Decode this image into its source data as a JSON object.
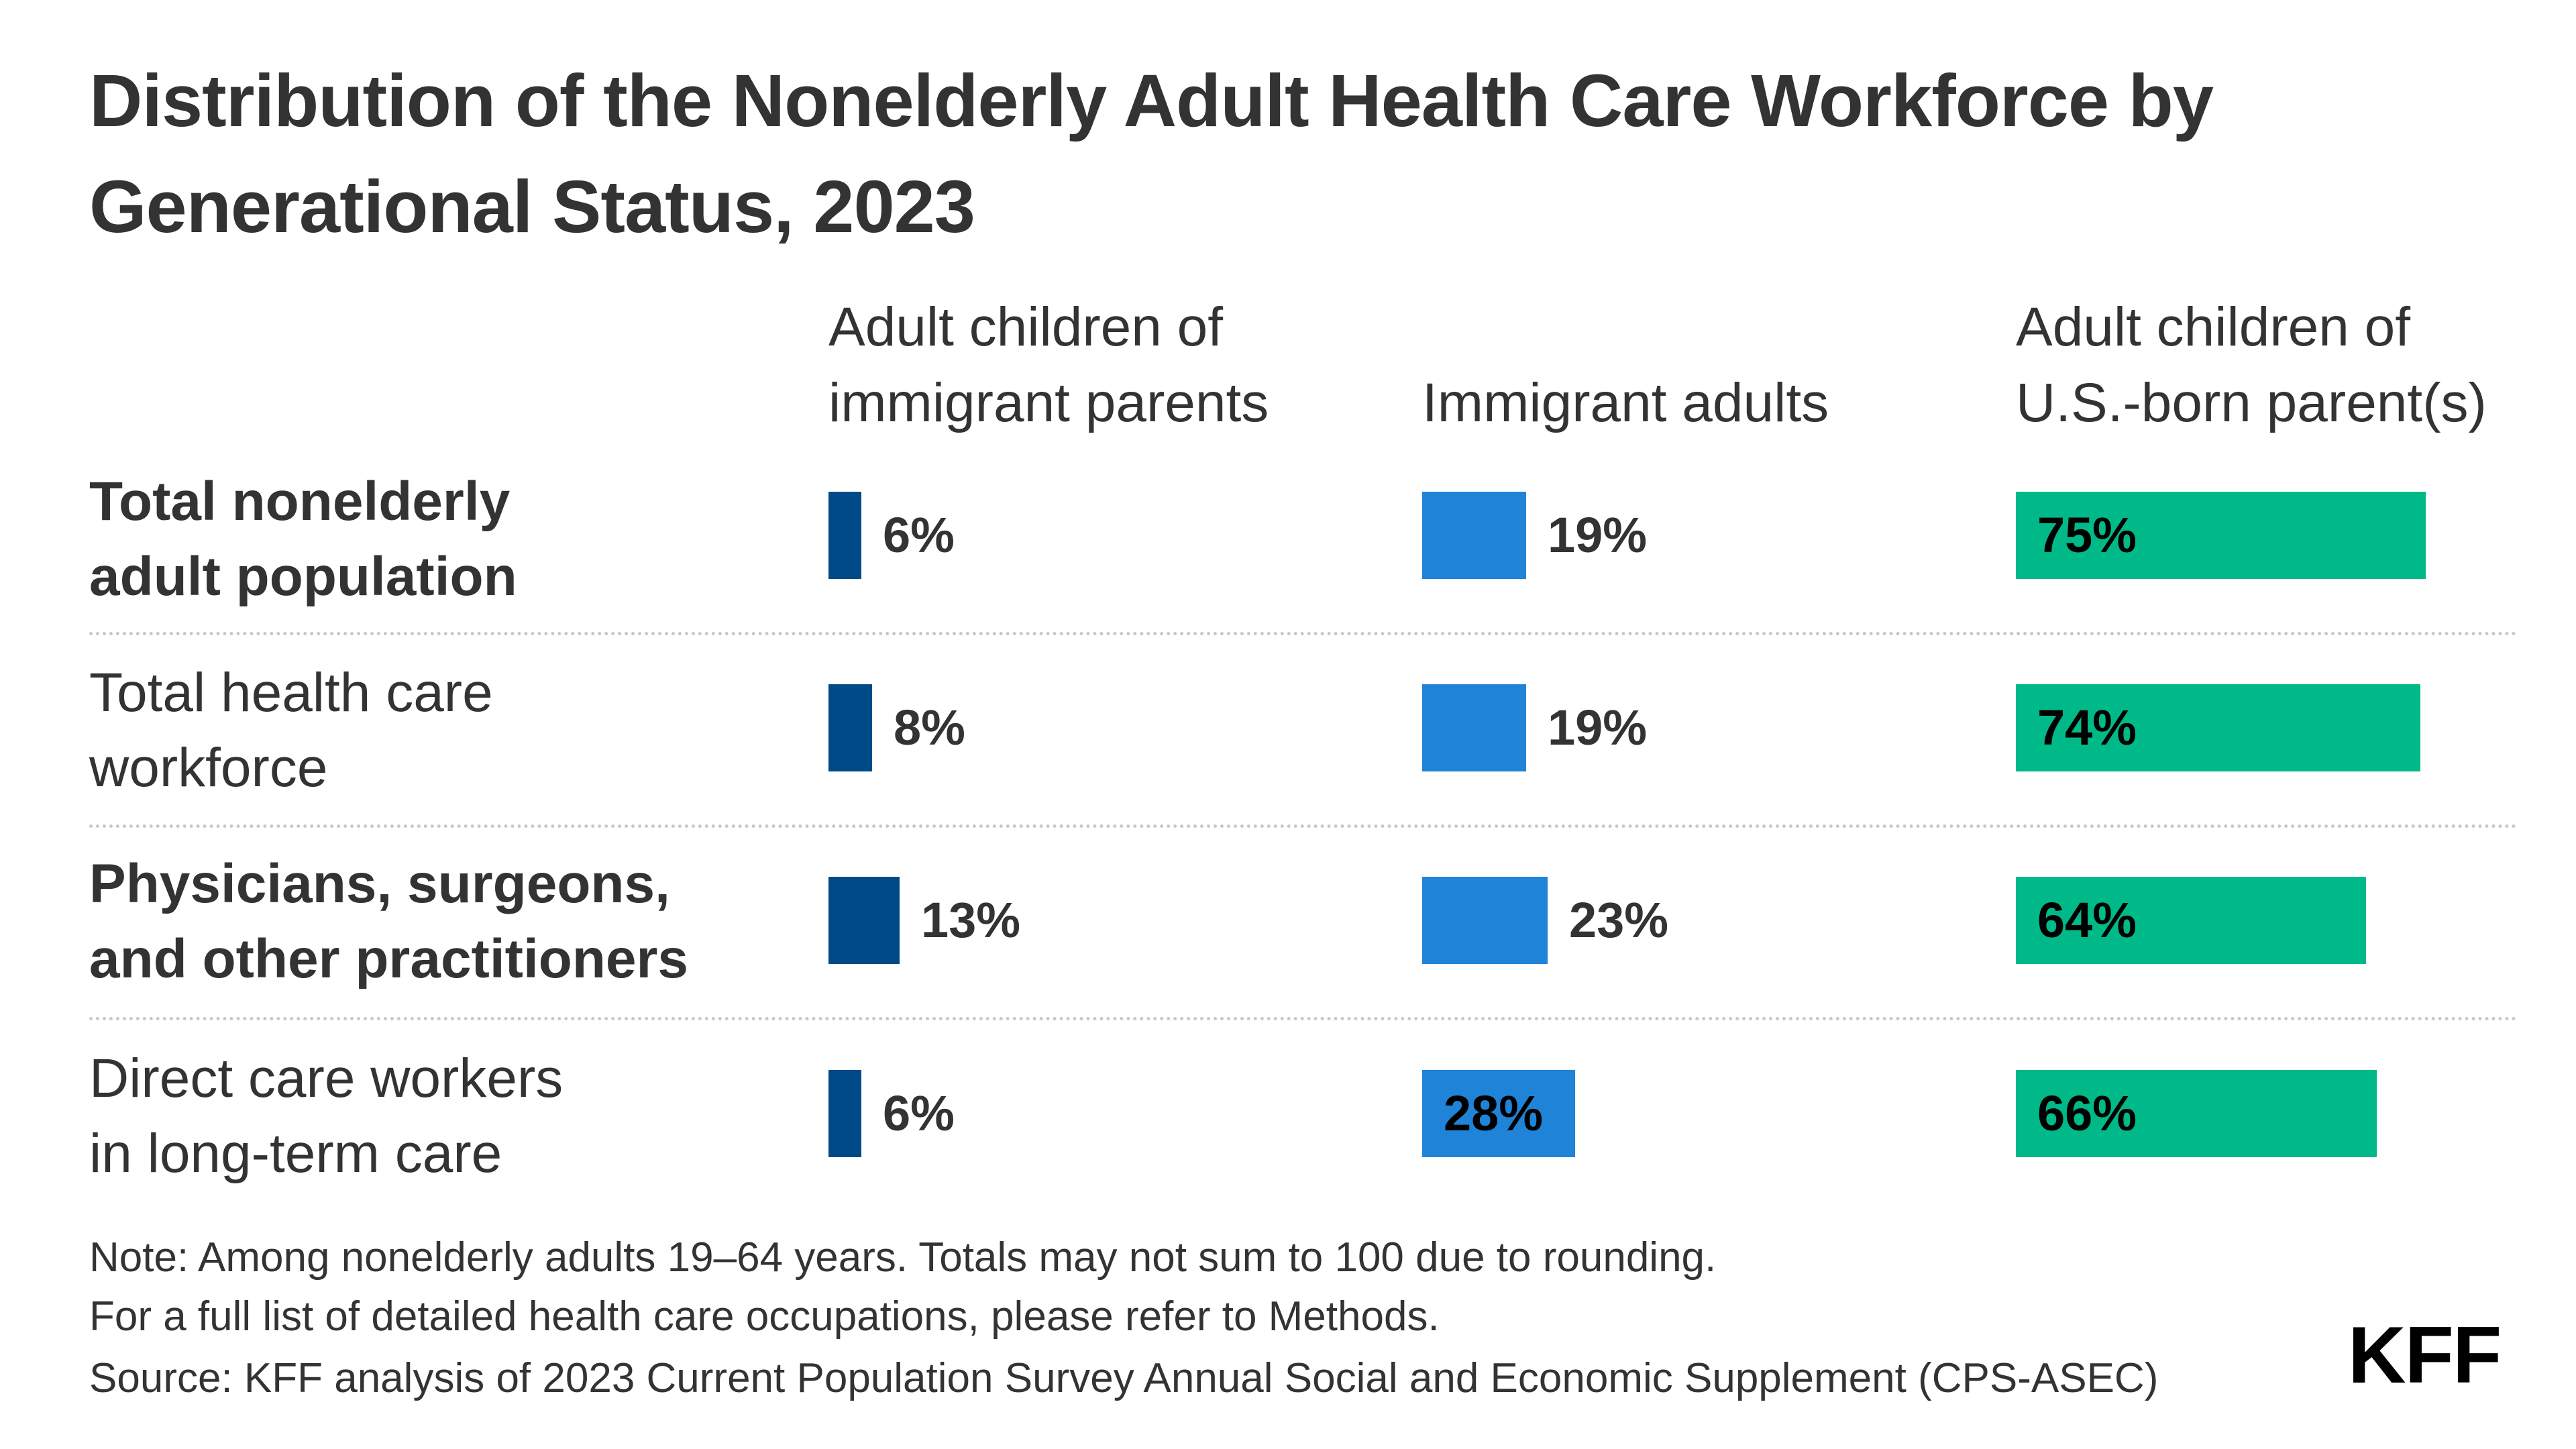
{
  "title": "Distribution of the Nonelderly Adult Health Care Workforce by Generational Status, 2023",
  "colors": {
    "immigrant_parents": "#004b87",
    "immigrant_adults": "#1f83d7",
    "us_born_parents": "#00b988",
    "text": "#333333",
    "divider": "#c8c8c8"
  },
  "chart_data": {
    "type": "bar",
    "orientation": "horizontal",
    "title": "Distribution of the Nonelderly Adult Health Care Workforce by Generational Status, 2023",
    "categories": [
      "Total nonelderly adult population",
      "Total health care workforce",
      "Physicians, surgeons, and other practitioners",
      "Direct care workers in long-term care"
    ],
    "category_lines": [
      [
        "Total nonelderly",
        "adult population"
      ],
      [
        "Total health care",
        "workforce"
      ],
      [
        "Physicians, surgeons,",
        "and other practitioners"
      ],
      [
        "Direct care workers",
        "in long-term care"
      ]
    ],
    "category_bold": [
      true,
      false,
      true,
      false
    ],
    "series": [
      {
        "name": "Adult children of immigrant parents",
        "header_lines": [
          "Adult children of",
          "immigrant parents"
        ],
        "values": [
          6,
          8,
          13,
          6
        ],
        "labels": [
          "6%",
          "8%",
          "13%",
          "6%"
        ]
      },
      {
        "name": "Immigrant adults",
        "header_lines": [
          "",
          "Immigrant adults"
        ],
        "values": [
          19,
          19,
          23,
          28
        ],
        "labels": [
          "19%",
          "19%",
          "23%",
          "28%"
        ]
      },
      {
        "name": "Adult children of U.S.-born parent(s)",
        "header_lines": [
          "Adult children of",
          "U.S.-born parent(s)"
        ],
        "values": [
          75,
          74,
          64,
          66
        ],
        "labels": [
          "75%",
          "74%",
          "64%",
          "66%"
        ]
      }
    ],
    "unit": "%"
  },
  "notes": [
    "Note: Among nonelderly adults 19–64 years. Totals may not sum to 100 due to rounding.",
    "For a full list of detailed health care occupations, please refer to Methods.",
    "Source: KFF analysis of 2023 Current Population Survey Annual Social and Economic Supplement (CPS-ASEC)"
  ],
  "logo": "KFF"
}
